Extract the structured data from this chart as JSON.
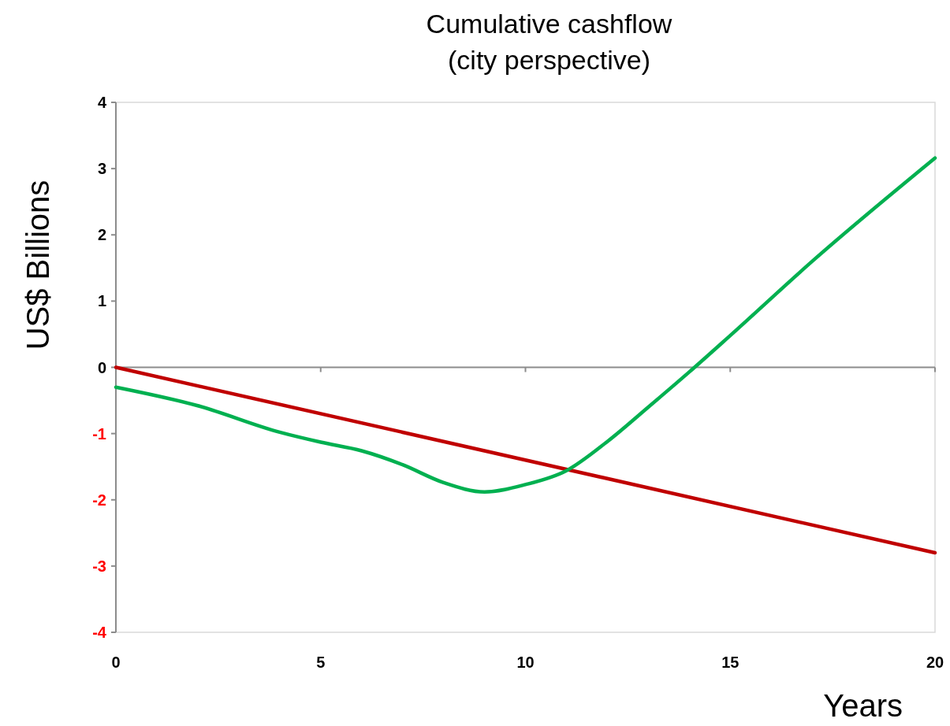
{
  "chart_data": {
    "type": "line",
    "title": "Cumulative cashflow",
    "subtitle": "(city perspective)",
    "xlabel": "Years",
    "ylabel": "US$ Billions",
    "xlim": [
      0,
      20
    ],
    "xticks": [
      0,
      5,
      10,
      15,
      20
    ],
    "ylim": [
      -4,
      4
    ],
    "yticks": [
      -4,
      -3,
      -2,
      -1,
      0,
      1,
      2,
      3,
      4
    ],
    "series": [
      {
        "color": "#c00000",
        "x": [
          0,
          20
        ],
        "values": [
          0,
          -2.8
        ]
      },
      {
        "color": "#00b050",
        "x": [
          0,
          2,
          4,
          5,
          6,
          7,
          8,
          9,
          10,
          11,
          12,
          13,
          14,
          15,
          17,
          20
        ],
        "values": [
          -0.3,
          -0.58,
          -0.98,
          -1.13,
          -1.26,
          -1.47,
          -1.74,
          -1.88,
          -1.77,
          -1.56,
          -1.12,
          -0.6,
          -0.07,
          0.48,
          1.6,
          3.16
        ]
      }
    ]
  }
}
